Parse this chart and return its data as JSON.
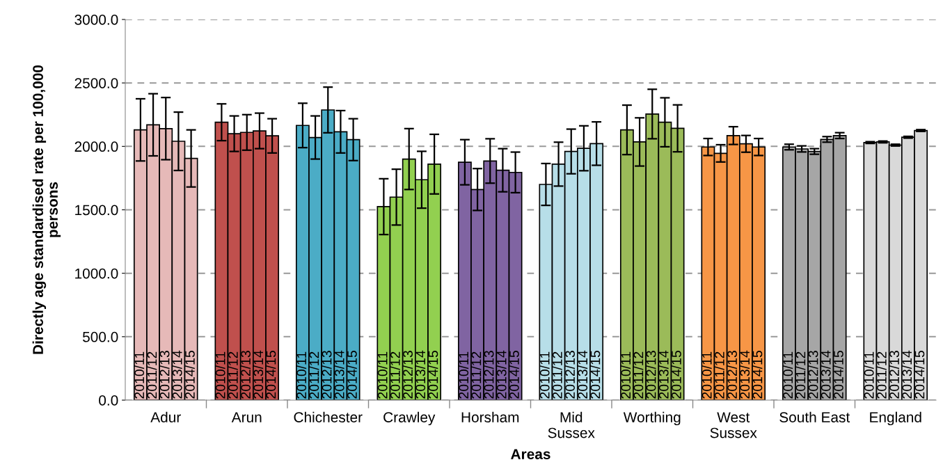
{
  "chart_data": {
    "type": "bar",
    "xlabel": "Areas",
    "ylabel": "Directly age standardised rate per 100,000\npersons",
    "categories": [
      "Adur",
      "Arun",
      "Chichester",
      "Crawley",
      "Horsham",
      "Mid\nSussex",
      "Worthing",
      "West\nSussex",
      "South East",
      "England"
    ],
    "ylim": [
      0,
      3000
    ],
    "yticks": [
      {
        "value": 0,
        "label": "0.0"
      },
      {
        "value": 500,
        "label": "500.0"
      },
      {
        "value": 1000,
        "label": "1000.0"
      },
      {
        "value": 1500,
        "label": "1500.0"
      },
      {
        "value": 2000,
        "label": "2000.0"
      },
      {
        "value": 2500,
        "label": "2500.0"
      },
      {
        "value": 3000,
        "label": "3000.0"
      }
    ],
    "grid": "y",
    "series": [
      {
        "name": "2010/11",
        "colors": [
          "#e6b9b8",
          "#c0504d",
          "#4bacc6",
          "#92d050",
          "#8064a2",
          "#b7dee8",
          "#9bbb59",
          "#f79646",
          "#a6a6a6",
          "#d9d9d9"
        ],
        "values": [
          2130,
          2190,
          2165,
          1525,
          1875,
          1700,
          2130,
          1995,
          1995,
          2030
        ],
        "errors": [
          245,
          145,
          175,
          220,
          178,
          165,
          195,
          67,
          22,
          7
        ]
      },
      {
        "name": "2011/12",
        "colors": [
          "#e6b9b8",
          "#c0504d",
          "#4bacc6",
          "#92d050",
          "#8064a2",
          "#b7dee8",
          "#9bbb59",
          "#f79646",
          "#a6a6a6",
          "#d9d9d9"
        ],
        "values": [
          2170,
          2100,
          2070,
          1600,
          1660,
          1860,
          2035,
          1945,
          1980,
          2035
        ],
        "errors": [
          245,
          140,
          170,
          220,
          165,
          173,
          190,
          68,
          24,
          7
        ]
      },
      {
        "name": "2012/13",
        "colors": [
          "#e6b9b8",
          "#c0504d",
          "#4bacc6",
          "#92d050",
          "#8064a2",
          "#b7dee8",
          "#9bbb59",
          "#f79646",
          "#a6a6a6",
          "#d9d9d9"
        ],
        "values": [
          2140,
          2110,
          2287,
          1900,
          1885,
          1960,
          2255,
          2085,
          1960,
          2010
        ],
        "errors": [
          245,
          140,
          180,
          240,
          175,
          176,
          195,
          70,
          22,
          7
        ]
      },
      {
        "name": "2013/14",
        "colors": [
          "#e6b9b8",
          "#c0504d",
          "#4bacc6",
          "#92d050",
          "#8064a2",
          "#b7dee8",
          "#9bbb59",
          "#f79646",
          "#a6a6a6",
          "#d9d9d9"
        ],
        "values": [
          2040,
          2122,
          2115,
          1737,
          1812,
          1985,
          2190,
          2020,
          2055,
          2072
        ],
        "errors": [
          230,
          140,
          167,
          224,
          170,
          177,
          193,
          66,
          22,
          7
        ]
      },
      {
        "name": "2014/15",
        "colors": [
          "#e6b9b8",
          "#c0504d",
          "#4bacc6",
          "#92d050",
          "#8064a2",
          "#b7dee8",
          "#9bbb59",
          "#f79646",
          "#a6a6a6",
          "#d9d9d9"
        ],
        "values": [
          1905,
          2083,
          2053,
          1860,
          1795,
          2022,
          2142,
          1995,
          2085,
          2125
        ],
        "errors": [
          225,
          135,
          165,
          235,
          160,
          171,
          185,
          67,
          23,
          7
        ]
      }
    ]
  }
}
